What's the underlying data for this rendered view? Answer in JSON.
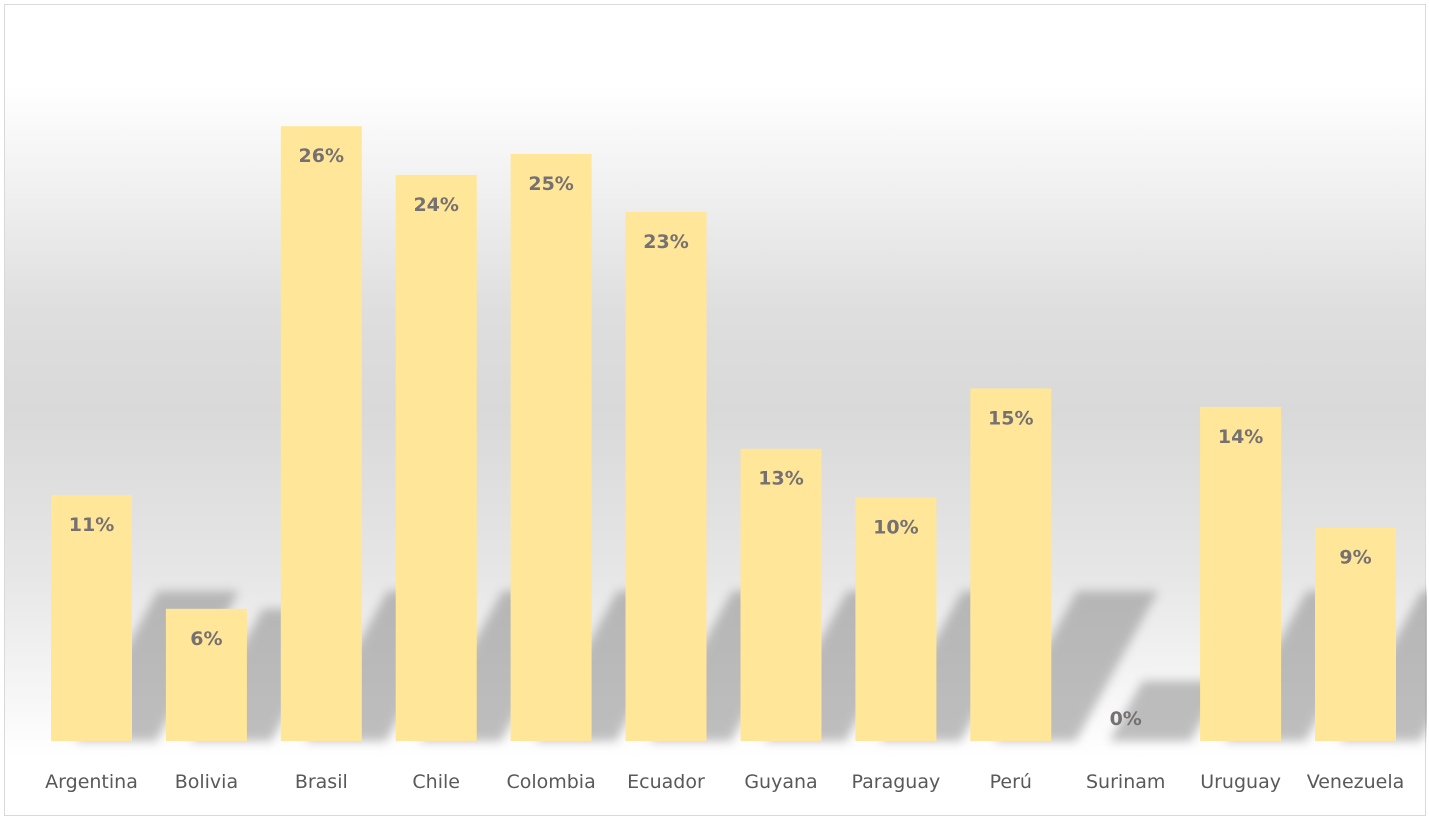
{
  "chart_data": {
    "type": "bar",
    "title": "",
    "xlabel": "",
    "ylabel": "",
    "categories": [
      "Argentina",
      "Bolivia",
      "Brasil",
      "Chile",
      "Colombia",
      "Ecuador",
      "Guyana",
      "Paraguay",
      "Perú",
      "Surinam",
      "Uruguay",
      "Venezuela"
    ],
    "values": [
      10.6,
      5.7,
      26.5,
      24.4,
      25.3,
      22.8,
      12.6,
      10.5,
      15.2,
      0,
      14.4,
      9.2
    ],
    "data_labels": [
      "11%",
      "6%",
      "26%",
      "24%",
      "25%",
      "23%",
      "13%",
      "10%",
      "15%",
      "0%",
      "14%",
      "9%"
    ],
    "ylim": [
      0,
      30
    ],
    "grid": false,
    "legend": "none",
    "colors": {
      "bar": "#ffe699",
      "data_label": "#767171",
      "tick_label": "#595959",
      "shadow": "#8c8c8c"
    }
  }
}
